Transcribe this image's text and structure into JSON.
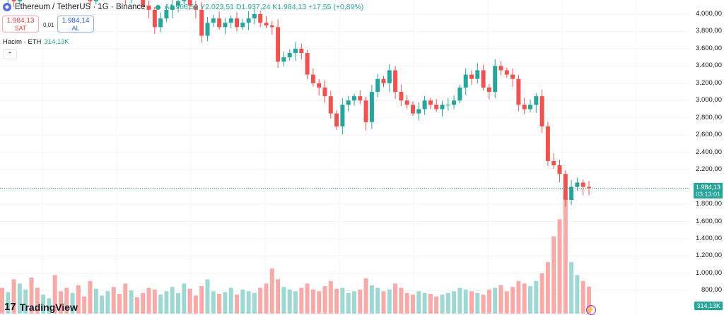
{
  "header": {
    "coin_icon": "ethereum-icon",
    "title": "Ethereum / TetherUS · 1G · Binance",
    "ohlc": "A1.966,59  Y2.023,51  D1.937,24  K1.984,13  +17,55 (+0,89%)"
  },
  "trade": {
    "sell_price": "1.984,13",
    "sell_label": "SAT",
    "spread": "0,01",
    "buy_price": "1.984,14",
    "buy_label": "AL"
  },
  "volume_legend": {
    "label": "Hacim · ETH",
    "value": "314,13K"
  },
  "colors": {
    "up": "#26a69a",
    "down": "#ef5350",
    "up_vol": "#9fd8d2",
    "down_vol": "#f7aaa8"
  },
  "price_axis": [
    "4.000,00",
    "3.800,00",
    "3.600,00",
    "3.400,00",
    "3.200,00",
    "3.000,00",
    "2.800,00",
    "2.600,00",
    "2.400,00",
    "2.200,00",
    "1.800,00",
    "1.600,00",
    "1.400,00",
    "1.200,00",
    "1.000,00",
    "800,00"
  ],
  "last_price": {
    "price": "1.984,13",
    "countdown": "03:13:01"
  },
  "last_volume": "314,13K",
  "branding": {
    "logo": "TradingView"
  },
  "chart_data": {
    "type": "candlestick",
    "price_ticks": [
      4000,
      3800,
      3600,
      3400,
      3200,
      3000,
      2800,
      2600,
      2400,
      2200,
      1800,
      1600,
      1400,
      1200,
      1000,
      800
    ],
    "last": 1984.13,
    "closes": [
      4200,
      4350,
      4150,
      4400,
      4500,
      4300,
      4250,
      4450,
      4600,
      4500,
      4350,
      4300,
      4500,
      4400,
      4250,
      4150,
      4300,
      4450,
      4550,
      4400,
      4300,
      4200,
      4350,
      4250,
      4100,
      4050,
      3850,
      3950,
      4050,
      4100,
      4150,
      4200,
      4100,
      4050,
      3750,
      3900,
      3950,
      3850,
      3900,
      3950,
      3850,
      3900,
      3950,
      4000,
      3900,
      3870,
      3850,
      3450,
      3500,
      3550,
      3600,
      3550,
      3300,
      3200,
      3150,
      3050,
      2850,
      2700,
      2950,
      3000,
      3050,
      3000,
      2750,
      3100,
      3250,
      3200,
      3350,
      3100,
      3000,
      2950,
      2850,
      2900,
      3000,
      2950,
      2900,
      2950,
      2950,
      3000,
      3150,
      3300,
      3250,
      3350,
      3150,
      3100,
      3400,
      3350,
      3300,
      3250,
      2950,
      2900,
      2950,
      3050,
      2700,
      2300,
      2250,
      2150,
      1850,
      2000,
      2050,
      2000,
      1984
    ],
    "volumes_k": [
      300,
      250,
      400,
      350,
      280,
      420,
      300,
      220,
      180,
      450,
      260,
      300,
      240,
      330,
      200,
      380,
      290,
      210,
      260,
      310,
      230,
      350,
      270,
      190,
      240,
      300,
      280,
      220,
      260,
      310,
      240,
      350,
      290,
      210,
      320,
      400,
      260,
      230,
      250,
      300,
      220,
      280,
      260,
      240,
      300,
      350,
      525,
      400,
      310,
      280,
      260,
      300,
      350,
      280,
      260,
      320,
      380,
      290,
      300,
      240,
      260,
      280,
      410,
      330,
      300,
      260,
      280,
      350,
      300,
      240,
      220,
      260,
      240,
      230,
      200,
      220,
      240,
      260,
      300,
      280,
      260,
      240,
      220,
      280,
      300,
      330,
      260,
      310,
      380,
      350,
      320,
      380,
      470,
      600,
      900,
      1100,
      1400,
      600,
      450,
      380,
      314
    ]
  }
}
